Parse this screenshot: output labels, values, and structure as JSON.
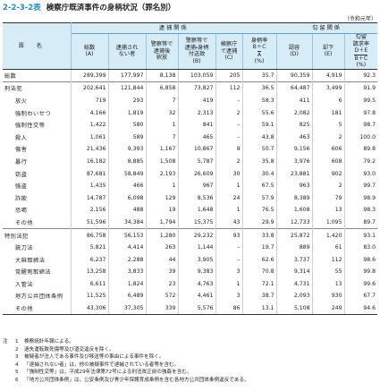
{
  "header": {
    "number": "2-2-3-2表",
    "title": "検察庁既済事件の身柄状況（罪名別）",
    "unit": "（令和元年）"
  },
  "table": {
    "name_header": "罪名",
    "groups": [
      "逮捕関係",
      "勾留関係"
    ],
    "columns": [
      [
        "総数",
        "(A)"
      ],
      [
        "逮捕され",
        "ない者"
      ],
      [
        "警察等で",
        "逮捕後",
        "釈放"
      ],
      [
        "警察等で",
        "逮捕・身柄",
        "付送致",
        "(B)"
      ],
      [
        "検察庁",
        "で逮捕",
        "(C)"
      ],
      [
        "身柄率",
        "B＋C",
        "A",
        "(%)"
      ],
      [
        "認容",
        "(D)"
      ],
      [
        "却下",
        "(E)"
      ],
      [
        "勾留",
        "請求率",
        "D＋E",
        "B＋C",
        "(%)"
      ]
    ],
    "rows": [
      [
        "総数",
        "289,399",
        "177,997",
        "8,138",
        "103,059",
        "205",
        "35.7",
        "90,359",
        "4,919",
        "92.3"
      ],
      [
        "刑法犯",
        "202,641",
        "121,844",
        "6,858",
        "73,827",
        "112",
        "36.5",
        "64,487",
        "3,499",
        "91.9"
      ],
      [
        "放火",
        "719",
        "293",
        "7",
        "419",
        "–",
        "58.3",
        "411",
        "6",
        "99.5"
      ],
      [
        "強制わいせつ",
        "4,166",
        "1,819",
        "32",
        "2,313",
        "2",
        "55.6",
        "2,082",
        "181",
        "97.8"
      ],
      [
        "強制性交等",
        "1,422",
        "580",
        "1",
        "841",
        "–",
        "59.1",
        "825",
        "5",
        "98.7"
      ],
      [
        "殺人",
        "1,061",
        "589",
        "7",
        "465",
        "–",
        "43.8",
        "463",
        "2",
        "100.0"
      ],
      [
        "傷害",
        "21,436",
        "9,393",
        "1,167",
        "10,867",
        "9",
        "50.7",
        "9,156",
        "606",
        "89.8"
      ],
      [
        "暴行",
        "16,182",
        "8,885",
        "1,508",
        "5,787",
        "2",
        "35.8",
        "3,976",
        "608",
        "79.2"
      ],
      [
        "窃盗",
        "87,681",
        "58,849",
        "2,193",
        "26,609",
        "30",
        "30.4",
        "23,881",
        "902",
        "93.0"
      ],
      [
        "強盗",
        "1,435",
        "466",
        "1",
        "967",
        "1",
        "67.5",
        "963",
        "2",
        "99.7"
      ],
      [
        "詐欺",
        "14,787",
        "6,098",
        "129",
        "8,536",
        "24",
        "57.9",
        "8,389",
        "79",
        "98.9"
      ],
      [
        "恐喝",
        "2,156",
        "488",
        "19",
        "1,648",
        "1",
        "76.5",
        "1,608",
        "13",
        "98.3"
      ],
      [
        "その他",
        "51,596",
        "34,384",
        "1,794",
        "15,375",
        "43",
        "29.9",
        "12,733",
        "1,095",
        "89.7"
      ],
      [
        "特別法犯",
        "86,758",
        "56,153",
        "1,280",
        "29,232",
        "93",
        "33.8",
        "25,872",
        "1,420",
        "93.1"
      ],
      [
        "銃刀法",
        "5,821",
        "4,414",
        "263",
        "1,144",
        "–",
        "19.7",
        "889",
        "61",
        "83.0"
      ],
      [
        "大麻取締法",
        "6,237",
        "2,288",
        "44",
        "3,905",
        "–",
        "62.6",
        "3,737",
        "112",
        "98.6"
      ],
      [
        "覚醒剤取締法",
        "13,258",
        "3,833",
        "39",
        "9,383",
        "3",
        "70.8",
        "9,314",
        "55",
        "99.8"
      ],
      [
        "入管法",
        "6,611",
        "1,824",
        "23",
        "4,763",
        "1",
        "72.1",
        "4,731",
        "13",
        "99.6"
      ],
      [
        "地方公共団体条例",
        "11,525",
        "6,489",
        "572",
        "4,461",
        "3",
        "38.7",
        "2,093",
        "930",
        "67.7"
      ],
      [
        "その他",
        "43,306",
        "37,305",
        "339",
        "5,576",
        "86",
        "13.1",
        "5,108",
        "249",
        "94.6"
      ]
    ]
  },
  "notes": {
    "label": "注",
    "items": [
      [
        "1",
        "検察統計年報による。"
      ],
      [
        "2",
        "過失運転致死傷等及び道交違反を除く。"
      ],
      [
        "3",
        "被疑者が法人である事件及び移送等の事由による事件を除く。"
      ],
      [
        "4",
        "「逮捕されない者」は，他の被疑事件で逮捕されている者等を含む。"
      ],
      [
        "5",
        "「強制性交等」は，平成29年法律第72号による刑法改正前の強姦を含む。"
      ],
      [
        "6",
        "「地方公共団体条例」は，公安条例及び青少年保護育成条例を含む各地方公共団体条例違反である。"
      ]
    ]
  }
}
